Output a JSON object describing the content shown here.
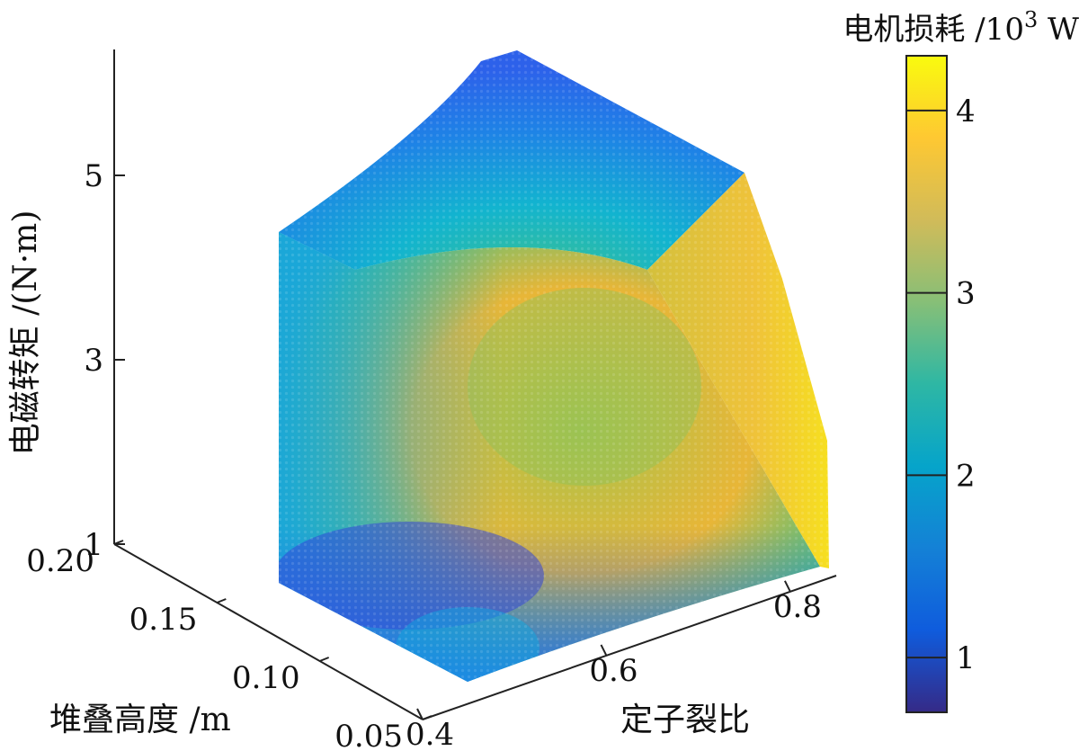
{
  "chart_data": {
    "type": "3d-scatter-volume",
    "xlabel": "定子裂比",
    "ylabel": "堆叠高度 /m",
    "zlabel": "电磁转矩 /(N·m)",
    "x_ticks": [
      "0.4",
      "0.6",
      "0.8"
    ],
    "y_ticks": [
      "0.05",
      "0.10",
      "0.15",
      "0.20"
    ],
    "z_ticks": [
      "1",
      "3",
      "5"
    ],
    "xlim": [
      0.4,
      0.85
    ],
    "ylim": [
      0.05,
      0.2
    ],
    "zlim": [
      1,
      6.5
    ],
    "colorbar": {
      "title_prefix": "电机损耗 /10",
      "title_exp": "3",
      "title_unit": " W",
      "ticks": [
        "1",
        "2",
        "3",
        "4"
      ],
      "tick_values": [
        1,
        2,
        3,
        4
      ],
      "range": [
        0.7,
        4.3
      ],
      "colormap": "parula"
    },
    "value_range_kW": [
      0.8,
      4.2
    ],
    "colors": {
      "low": "#352a87",
      "mid_low": "#1484d4",
      "mid": "#3bbfa0",
      "mid_high": "#c0bc41",
      "high": "#f9fb0e"
    }
  }
}
